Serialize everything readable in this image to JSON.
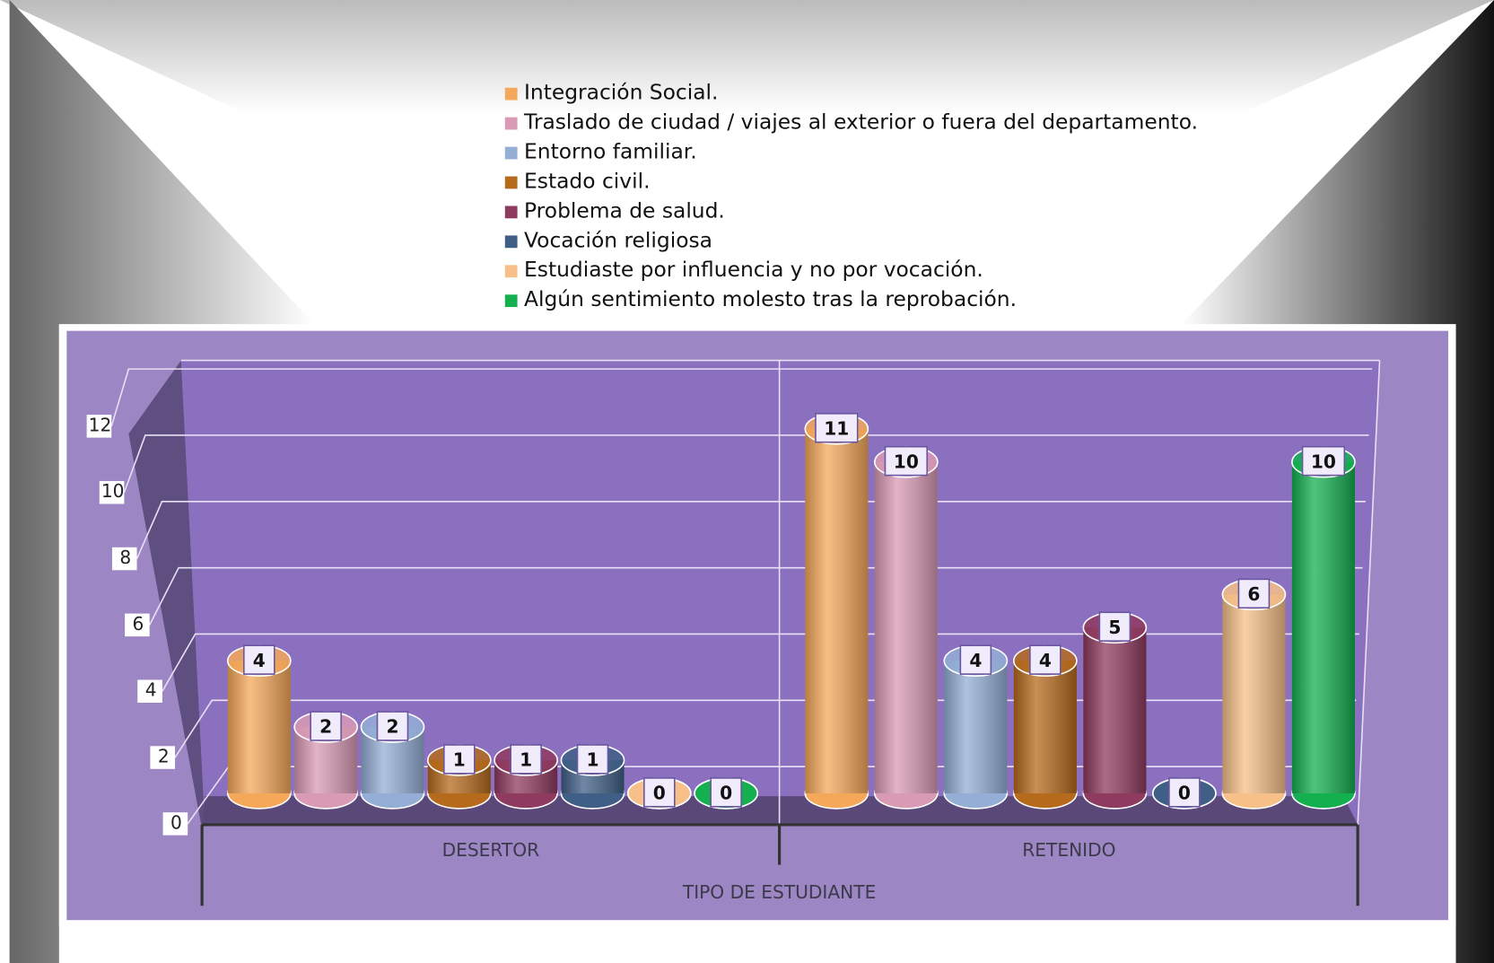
{
  "chart_data": {
    "type": "bar3d",
    "categories": [
      "DESERTOR",
      "RETENIDO"
    ],
    "x_axis_label": "TIPO DE ESTUDIANTE",
    "series": [
      {
        "name": "Integración Social.",
        "color": "#f5a85a",
        "values": [
          4,
          11
        ]
      },
      {
        "name": "Traslado de ciudad / viajes al exterior o fuera del departamento.",
        "color": "#d99ab5",
        "values": [
          2,
          10
        ]
      },
      {
        "name": "Entorno familiar.",
        "color": "#94aed6",
        "values": [
          2,
          4
        ]
      },
      {
        "name": "Estado civil.",
        "color": "#b56a1c",
        "values": [
          1,
          4
        ]
      },
      {
        "name": "Problema de salud.",
        "color": "#8f3a5f",
        "values": [
          1,
          5
        ]
      },
      {
        "name": "Vocación religiosa",
        "color": "#3f5f86",
        "values": [
          1,
          0
        ]
      },
      {
        "name": "Estudiaste por influencia y no por vocación.",
        "color": "#f6c088",
        "values": [
          0,
          6
        ]
      },
      {
        "name": "Algún sentimiento molesto tras la reprobación.",
        "color": "#14b050",
        "values": [
          0,
          10
        ]
      }
    ],
    "ylim": [
      0,
      12
    ],
    "yticks": [
      0,
      2,
      4,
      6,
      8,
      10,
      12
    ],
    "grid": true,
    "legend": "top"
  }
}
